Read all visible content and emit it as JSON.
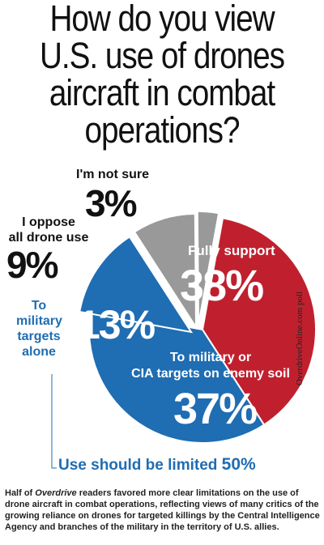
{
  "title_lines": [
    "How do you view",
    "U.S. use of drones",
    "aircraft in combat",
    "operations?"
  ],
  "chart_data": {
    "type": "pie",
    "slices": [
      {
        "label": "Fully support",
        "value": 38,
        "display": "38%",
        "color": "#c0202e"
      },
      {
        "label": "To military or CIA targets on enemy soil",
        "value": 37,
        "display": "37%",
        "color": "#1f6db3"
      },
      {
        "label": "To military targets alone",
        "value": 13,
        "display": "13%",
        "color": "#1f6db3"
      },
      {
        "label": "I oppose all drone use",
        "value": 9,
        "display": "9%",
        "color": "#999999"
      },
      {
        "label": "I'm not sure",
        "value": 3,
        "display": "3%",
        "color": "#999999"
      }
    ],
    "group_annotation": {
      "text": "Use should be limited",
      "value": "50%"
    }
  },
  "labels": {
    "unsure": "I'm not sure",
    "oppose_line1": "I oppose",
    "oppose_line2": "all drone use",
    "mil_line1": "To",
    "mil_line2": "military",
    "mil_line3": "targets",
    "mil_line4": "alone",
    "full": "Fully support",
    "cia_line1": "To military or",
    "cia_line2": "CIA targets on enemy soil"
  },
  "credit": "OverdriveOnline.com poll",
  "note": {
    "before": "Half of ",
    "italic": "Overdrive",
    "after": " readers favored more clear limitations on the use of drone aircraft in combat operations, reflecting views of many critics of the growing reliance on drones for targeted killings by the Central Intelligence Agency and branches of the military in the territory of U.S. allies."
  }
}
